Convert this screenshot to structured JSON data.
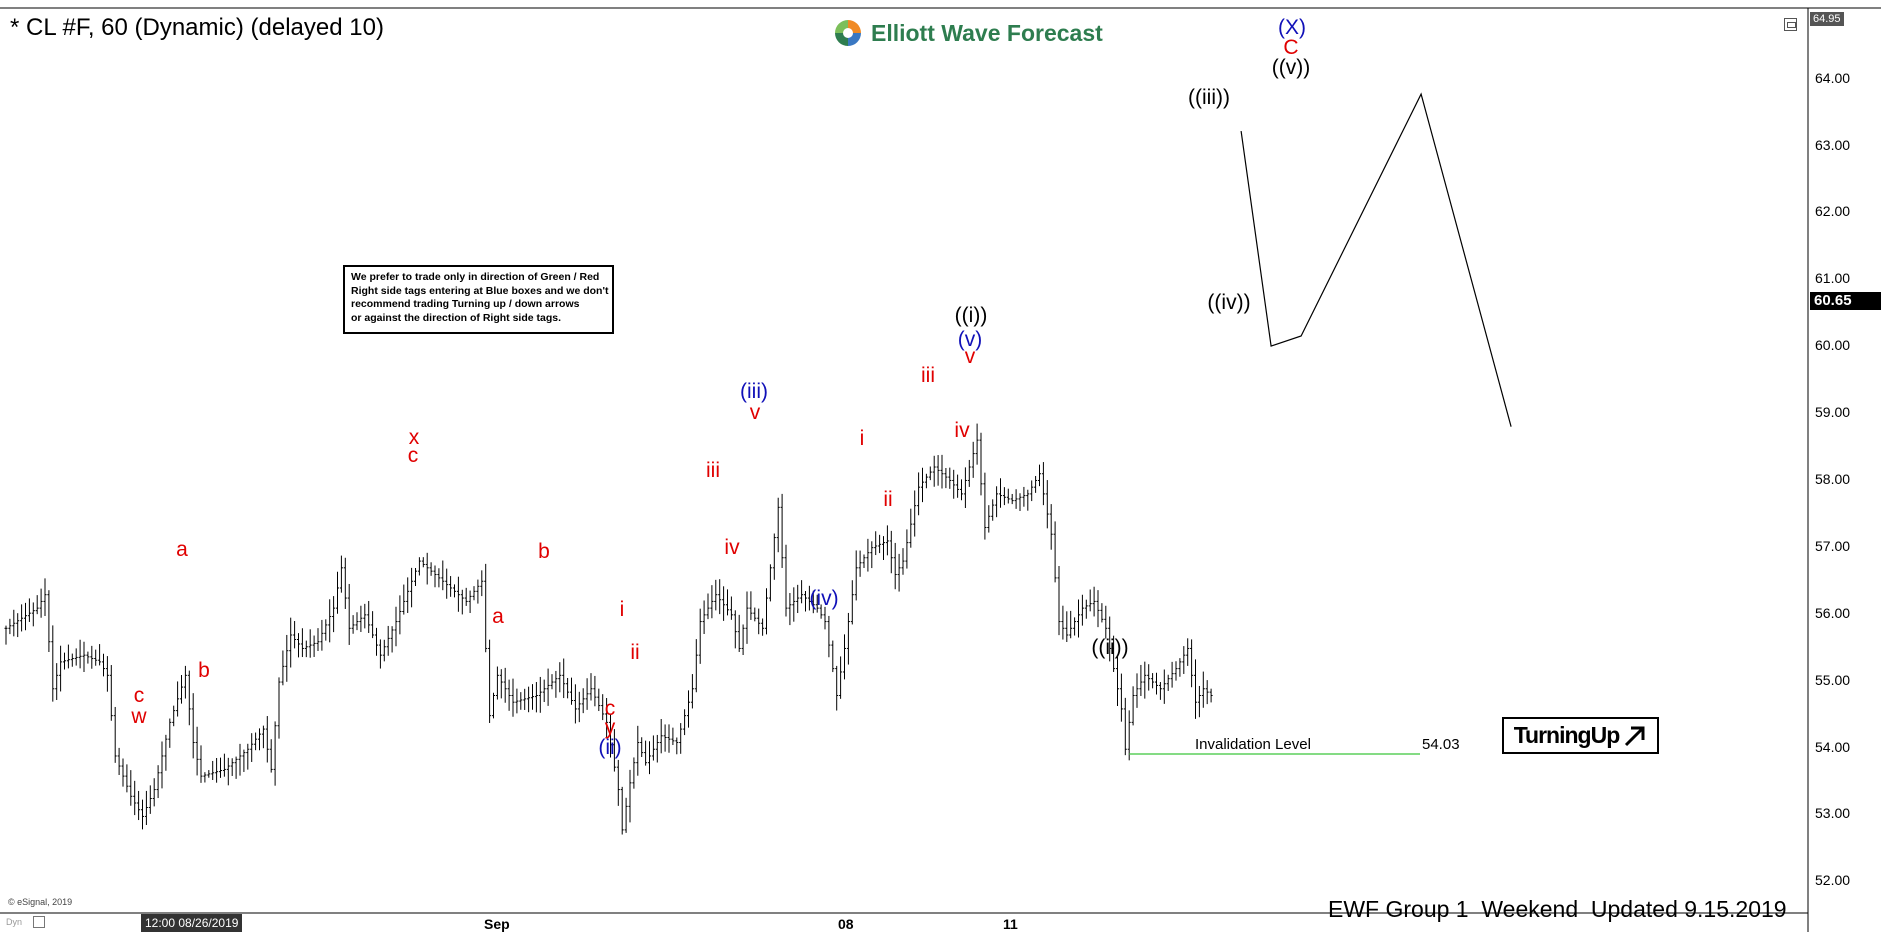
{
  "header": {
    "symbol_title": "* CL #F, 60 (Dynamic) (delayed 10)",
    "brand": "Elliott Wave Forecast",
    "brand_colors": [
      "#2e7d4f",
      "#f08a24",
      "#3a78c2"
    ]
  },
  "note": {
    "lines": [
      "We prefer to trade only in direction of Green / Red",
      "Right side tags entering at Blue boxes and we don't",
      "recommend trading Turning up / down arrows",
      "or against the direction of Right side tags."
    ]
  },
  "badge": {
    "label": "TurningUp",
    "icon": "up-right-arrow-icon"
  },
  "footer": {
    "text": "EWF Group 1  Weekend  Updated 9.15.2019"
  },
  "meta": {
    "copyright": "© eSignal, 2019",
    "corner_label": "Dyn",
    "top_price": "64.95",
    "current_price": "60.65",
    "crosshair_time": "12:00 08/26/2019"
  },
  "chart_data": {
    "type": "candlestick",
    "instrument": "CL #F",
    "interval": "60",
    "ylim": [
      51.8,
      65.0
    ],
    "yticks": [
      "52.00",
      "53.00",
      "54.00",
      "55.00",
      "56.00",
      "57.00",
      "58.00",
      "59.00",
      "60.00",
      "61.00",
      "62.00",
      "63.00",
      "64.00"
    ],
    "xtick_labels": [
      {
        "label": "Sep",
        "bar": 131
      },
      {
        "label": "08",
        "bar": 221
      },
      {
        "label": "11",
        "bar": 263
      }
    ],
    "series_color": "#000000",
    "close_path": [
      [
        0,
        55.9
      ],
      [
        8,
        56.2
      ],
      [
        10,
        56.4
      ],
      [
        12,
        55.0
      ],
      [
        14,
        55.4
      ],
      [
        20,
        55.5
      ],
      [
        24,
        55.4
      ],
      [
        26,
        55.2
      ],
      [
        28,
        54.0
      ],
      [
        32,
        53.4
      ],
      [
        35,
        53.1
      ],
      [
        38,
        53.5
      ],
      [
        42,
        54.5
      ],
      [
        46,
        55.2
      ],
      [
        48,
        54.2
      ],
      [
        50,
        53.7
      ],
      [
        56,
        53.8
      ],
      [
        62,
        54.1
      ],
      [
        66,
        54.4
      ],
      [
        68,
        53.8
      ],
      [
        70,
        55.1
      ],
      [
        73,
        55.8
      ],
      [
        76,
        55.6
      ],
      [
        80,
        55.7
      ],
      [
        84,
        56.2
      ],
      [
        86,
        56.8
      ],
      [
        88,
        55.9
      ],
      [
        92,
        56.1
      ],
      [
        96,
        55.5
      ],
      [
        100,
        56.0
      ],
      [
        104,
        56.6
      ],
      [
        106,
        56.9
      ],
      [
        110,
        56.7
      ],
      [
        114,
        56.5
      ],
      [
        118,
        56.3
      ],
      [
        122,
        56.6
      ],
      [
        124,
        54.6
      ],
      [
        126,
        55.2
      ],
      [
        130,
        54.8
      ],
      [
        136,
        54.9
      ],
      [
        142,
        55.2
      ],
      [
        146,
        54.7
      ],
      [
        150,
        55.0
      ],
      [
        154,
        54.5
      ],
      [
        157,
        53.5
      ],
      [
        158,
        52.9
      ],
      [
        160,
        53.6
      ],
      [
        162,
        54.2
      ],
      [
        164,
        53.9
      ],
      [
        168,
        54.3
      ],
      [
        172,
        54.2
      ],
      [
        176,
        55.0
      ],
      [
        178,
        56.0
      ],
      [
        182,
        56.4
      ],
      [
        186,
        56.1
      ],
      [
        188,
        55.6
      ],
      [
        190,
        56.2
      ],
      [
        194,
        55.9
      ],
      [
        196,
        56.8
      ],
      [
        198,
        57.7
      ],
      [
        200,
        56.2
      ],
      [
        204,
        56.4
      ],
      [
        208,
        56.2
      ],
      [
        210,
        56.0
      ],
      [
        212,
        55.3
      ],
      [
        213,
        54.9
      ],
      [
        215,
        55.6
      ],
      [
        218,
        56.8
      ],
      [
        222,
        57.1
      ],
      [
        226,
        57.2
      ],
      [
        228,
        56.7
      ],
      [
        230,
        56.9
      ],
      [
        234,
        58.0
      ],
      [
        238,
        58.3
      ],
      [
        242,
        58.1
      ],
      [
        245,
        57.9
      ],
      [
        249,
        58.7
      ],
      [
        251,
        57.4
      ],
      [
        254,
        57.9
      ],
      [
        258,
        57.8
      ],
      [
        262,
        57.9
      ],
      [
        265,
        58.2
      ],
      [
        268,
        57.3
      ],
      [
        270,
        56.0
      ],
      [
        272,
        55.8
      ],
      [
        276,
        56.2
      ],
      [
        279,
        56.3
      ],
      [
        282,
        55.9
      ],
      [
        284,
        55.3
      ],
      [
        286,
        54.7
      ],
      [
        287,
        54.1
      ],
      [
        289,
        54.9
      ],
      [
        292,
        55.2
      ],
      [
        296,
        55.0
      ],
      [
        300,
        55.3
      ],
      [
        303,
        55.6
      ],
      [
        305,
        54.8
      ],
      [
        307,
        55.0
      ],
      [
        309,
        54.9
      ]
    ],
    "projection": {
      "points": [
        [
          1,
          63.3
        ],
        [
          2,
          60.1
        ],
        [
          3,
          60.25
        ],
        [
          7,
          63.85
        ],
        [
          10,
          58.9
        ]
      ],
      "axis_note": "wave count projection after last bar"
    },
    "wave_labels": [
      {
        "text": "a",
        "color": "red",
        "x": 182,
        "y": 549
      },
      {
        "text": "b",
        "color": "red",
        "x": 204,
        "y": 670
      },
      {
        "text": "c",
        "color": "red",
        "x": 139,
        "y": 695
      },
      {
        "text": "w",
        "color": "red",
        "x": 139,
        "y": 716
      },
      {
        "text": "x",
        "color": "red",
        "x": 414,
        "y": 437
      },
      {
        "text": "c",
        "color": "red",
        "x": 413,
        "y": 455
      },
      {
        "text": "a",
        "color": "red",
        "x": 498,
        "y": 616
      },
      {
        "text": "b",
        "color": "red",
        "x": 544,
        "y": 551
      },
      {
        "text": "i",
        "color": "red",
        "x": 622,
        "y": 609
      },
      {
        "text": "ii",
        "color": "red",
        "x": 635,
        "y": 652
      },
      {
        "text": "c",
        "color": "red",
        "x": 610,
        "y": 708
      },
      {
        "text": "y",
        "color": "red",
        "x": 610,
        "y": 727
      },
      {
        "text": "(ii)",
        "color": "blue",
        "x": 610,
        "y": 747
      },
      {
        "text": "iii",
        "color": "red",
        "x": 713,
        "y": 470
      },
      {
        "text": "iv",
        "color": "red",
        "x": 732,
        "y": 547
      },
      {
        "text": "(iii)",
        "color": "blue",
        "x": 754,
        "y": 391
      },
      {
        "text": "v",
        "color": "red",
        "x": 755,
        "y": 412
      },
      {
        "text": "(iv)",
        "color": "blue",
        "x": 824,
        "y": 598
      },
      {
        "text": "i",
        "color": "red",
        "x": 862,
        "y": 438
      },
      {
        "text": "ii",
        "color": "red",
        "x": 888,
        "y": 499
      },
      {
        "text": "iii",
        "color": "red",
        "x": 928,
        "y": 375
      },
      {
        "text": "iv",
        "color": "red",
        "x": 962,
        "y": 430
      },
      {
        "text": "v",
        "color": "red",
        "x": 970,
        "y": 356
      },
      {
        "text": "(v)",
        "color": "blue",
        "x": 970,
        "y": 339
      },
      {
        "text": "((i))",
        "color": "black",
        "x": 971,
        "y": 315
      },
      {
        "text": "((ii))",
        "color": "black",
        "x": 1110,
        "y": 647
      },
      {
        "text": "((iii))",
        "color": "black",
        "x": 1209,
        "y": 97
      },
      {
        "text": "((iv))",
        "color": "black",
        "x": 1229,
        "y": 302
      },
      {
        "text": "((v))",
        "color": "black",
        "x": 1291,
        "y": 67
      },
      {
        "text": "C",
        "color": "red",
        "x": 1291,
        "y": 47
      },
      {
        "text": "(X)",
        "color": "blue",
        "x": 1292,
        "y": 27
      }
    ],
    "invalidation": {
      "label": "Invalidation Level",
      "value": "54.03",
      "color": "#5ccf5c"
    }
  }
}
